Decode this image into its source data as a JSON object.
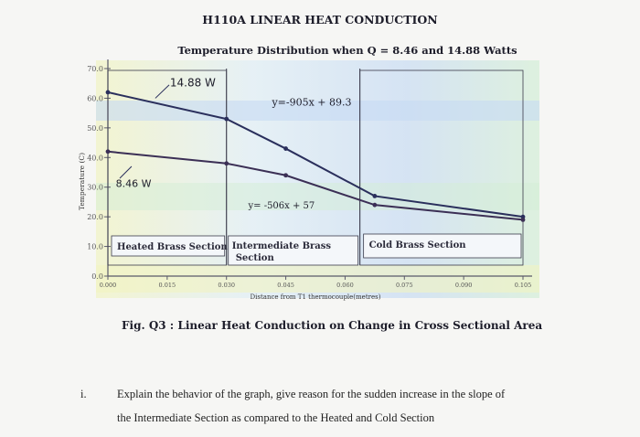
{
  "title": "H110A LINEAR HEAT CONDUCTION",
  "subtitle": "Temperature Distribution when Q = 8.46 and 14.88 Watts",
  "chart_data": {
    "type": "line",
    "xlabel": "Distance from T1 thermocouple(metres)",
    "ylabel": "Temperature (C)",
    "xlim": [
      0,
      0.105
    ],
    "ylim": [
      0,
      70
    ],
    "x_ticks": [
      "0.000",
      "0.015",
      "0.030",
      "0.045",
      "0.060",
      "0.075",
      "0.090",
      "0.105"
    ],
    "y_ticks": [
      "0.0",
      "10.0",
      "20.0",
      "30.0",
      "40.0",
      "50.0",
      "60.0",
      "70.0"
    ],
    "series": [
      {
        "name": "14.88 W",
        "x": [
          0,
          0.03,
          0.045,
          0.0675,
          0.105
        ],
        "y": [
          62,
          53,
          43,
          27,
          20
        ],
        "color": "#2a2f5c"
      },
      {
        "name": "8.46 W",
        "x": [
          0,
          0.03,
          0.045,
          0.0675,
          0.105
        ],
        "y": [
          42,
          38,
          34,
          24,
          19
        ],
        "color": "#3b2f55"
      }
    ],
    "annotations": [
      {
        "text": "14.88 W"
      },
      {
        "text": "8.46 W"
      },
      {
        "text": "y=-905x + 89.3"
      },
      {
        "text": "y= -506x + 57"
      }
    ],
    "sections": [
      "Heated Brass Section",
      "Intermediate Brass Section",
      "Cold Brass Section"
    ]
  },
  "caption": "Fig. Q3  :  Linear Heat Conduction on Change in Cross Sectional Area",
  "question": {
    "label": "i.",
    "line1": "Explain the behavior of the graph, give reason for the sudden increase in the slope of",
    "line2": "the Intermediate Section as compared to the Heated and Cold Section"
  },
  "colors": {
    "background": "#f6f6f4",
    "band_blue": "#c7dbf3",
    "band_yellow": "#f1f3c2",
    "band_green": "#d3eed6",
    "line": "#2a2f5c"
  }
}
